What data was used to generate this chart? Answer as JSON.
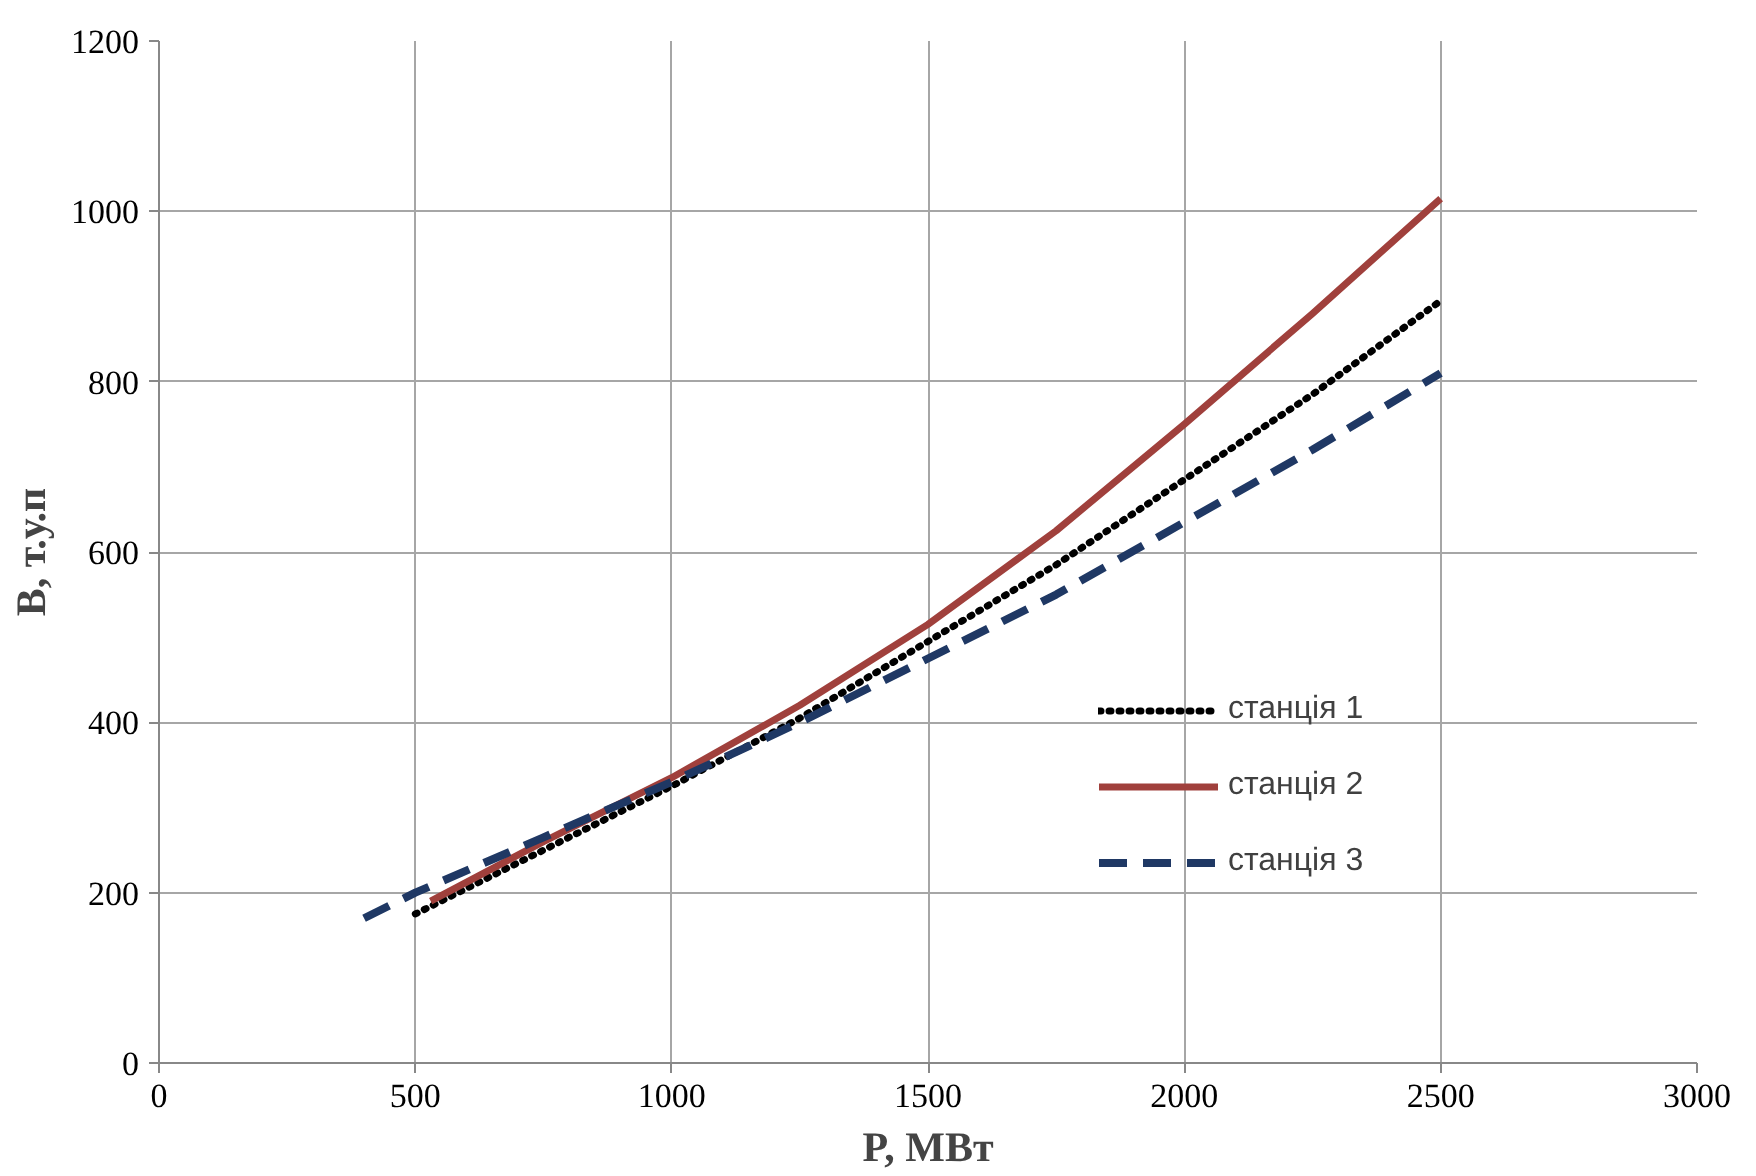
{
  "chart_data": {
    "type": "line",
    "xlabel": "P, МВт",
    "ylabel": "B, т.у.п",
    "xlim": [
      0,
      3000
    ],
    "xticks": [
      0,
      500,
      1000,
      1500,
      2000,
      2500,
      3000
    ],
    "ylim": [
      0,
      1200
    ],
    "yticks": [
      0,
      200,
      400,
      600,
      800,
      1000,
      1200
    ],
    "grid": true,
    "legend": "right",
    "series": [
      {
        "name": "станція 1",
        "color": "#000000",
        "line_style": "dotted",
        "x": [
          500,
          750,
          1000,
          1250,
          1500,
          1750,
          2000,
          2250,
          2500
        ],
        "values": [
          175,
          250,
          325,
          405,
          495,
          585,
          685,
          785,
          895
        ]
      },
      {
        "name": "станція 2",
        "color": "#a0403c",
        "line_style": "solid",
        "x": [
          530,
          750,
          1000,
          1250,
          1500,
          1750,
          2000,
          2250,
          2500
        ],
        "values": [
          190,
          260,
          335,
          420,
          515,
          625,
          750,
          880,
          1015
        ]
      },
      {
        "name": "станція 3",
        "color": "#1f3864",
        "line_style": "dashed",
        "x": [
          400,
          500,
          750,
          1000,
          1250,
          1500,
          1750,
          2000,
          2250,
          2500
        ],
        "values": [
          170,
          200,
          265,
          330,
          400,
          475,
          550,
          635,
          720,
          810
        ]
      }
    ]
  }
}
